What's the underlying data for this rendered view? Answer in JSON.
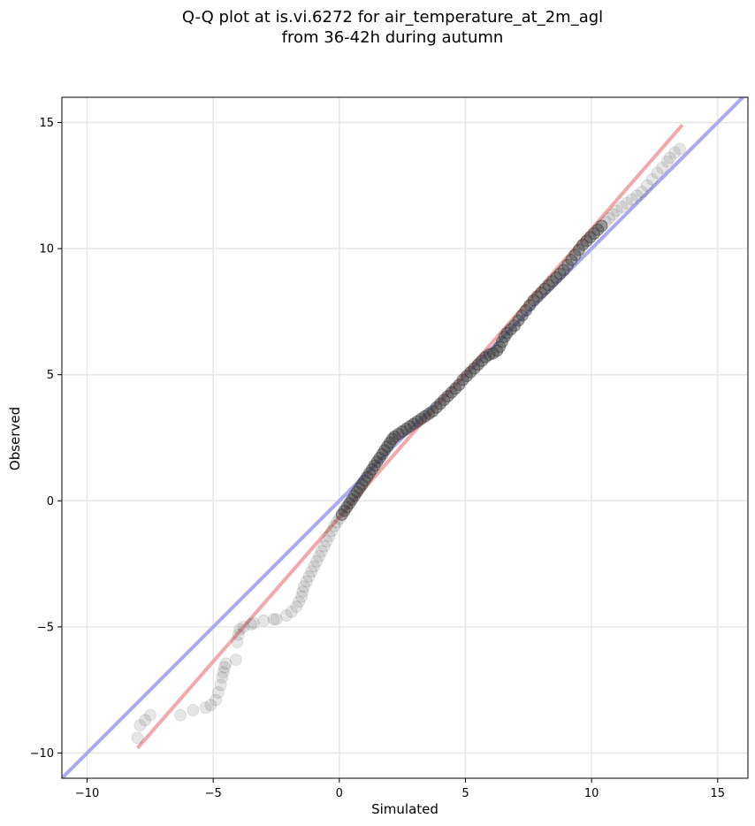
{
  "chart_data": {
    "type": "scatter",
    "title": "Q-Q plot at is.vi.6272 for air_temperature_at_2m_agl",
    "subtitle": "from 36-42h during autumn",
    "xlabel": "Simulated",
    "ylabel": "Observed",
    "xlim": [
      -11,
      16.2
    ],
    "ylim": [
      -11,
      16
    ],
    "xticks": [
      -10,
      -5,
      0,
      5,
      10,
      15
    ],
    "xtick_labels": [
      "−10",
      "−5",
      "0",
      "5",
      "10",
      "15"
    ],
    "yticks": [
      -10,
      -5,
      0,
      5,
      10,
      15
    ],
    "ytick_labels": [
      "−10",
      "−5",
      "0",
      "5",
      "10",
      "15"
    ],
    "grid": true,
    "reference_lines": [
      {
        "name": "",
        "color": "#aaaaee",
        "x": [
          -11,
          16.2
        ],
        "y": [
          -11,
          16.2
        ]
      },
      {
        "name": "",
        "color": "#f4a8a8",
        "x": [
          -8.0,
          13.6
        ],
        "y": [
          -9.8,
          14.9
        ]
      }
    ],
    "points": [
      [
        -8.0,
        -9.4
      ],
      [
        -7.9,
        -8.9
      ],
      [
        -7.7,
        -8.7
      ],
      [
        -7.5,
        -8.5
      ],
      [
        -6.3,
        -8.5
      ],
      [
        -5.8,
        -8.3
      ],
      [
        -5.3,
        -8.2
      ],
      [
        -5.1,
        -8.1
      ],
      [
        -4.9,
        -7.9
      ],
      [
        -4.8,
        -7.6
      ],
      [
        -4.7,
        -7.3
      ],
      [
        -4.65,
        -7.0
      ],
      [
        -4.6,
        -6.8
      ],
      [
        -4.55,
        -6.6
      ],
      [
        -4.5,
        -6.45
      ],
      [
        -4.1,
        -6.3
      ],
      [
        -4.05,
        -5.6
      ],
      [
        -4.0,
        -5.3
      ],
      [
        -3.95,
        -5.1
      ],
      [
        -3.8,
        -5.0
      ],
      [
        -3.5,
        -4.9
      ],
      [
        -3.4,
        -4.85
      ],
      [
        -3.0,
        -4.75
      ],
      [
        -2.6,
        -4.7
      ],
      [
        -2.5,
        -4.7
      ],
      [
        -2.1,
        -4.55
      ],
      [
        -1.9,
        -4.4
      ],
      [
        -1.7,
        -4.2
      ],
      [
        -1.6,
        -4.0
      ],
      [
        -1.5,
        -3.8
      ],
      [
        -1.45,
        -3.6
      ],
      [
        -1.4,
        -3.4
      ],
      [
        -1.3,
        -3.2
      ],
      [
        -1.2,
        -3.0
      ],
      [
        -1.1,
        -2.8
      ],
      [
        -1.0,
        -2.6
      ],
      [
        -0.9,
        -2.4
      ],
      [
        -0.8,
        -2.2
      ],
      [
        -0.7,
        -2.0
      ],
      [
        -0.6,
        -1.8
      ],
      [
        -0.5,
        -1.6
      ],
      [
        -0.4,
        -1.4
      ],
      [
        -0.3,
        -1.2
      ],
      [
        -0.2,
        -1.0
      ],
      [
        -0.1,
        -0.85
      ],
      [
        0.0,
        -0.7
      ],
      [
        0.1,
        -0.55
      ],
      [
        0.2,
        -0.4
      ],
      [
        0.3,
        -0.25
      ],
      [
        0.4,
        -0.1
      ],
      [
        0.5,
        0.05
      ],
      [
        0.6,
        0.2
      ],
      [
        0.7,
        0.35
      ],
      [
        0.8,
        0.5
      ],
      [
        0.9,
        0.65
      ],
      [
        1.0,
        0.8
      ],
      [
        1.1,
        0.95
      ],
      [
        1.2,
        1.1
      ],
      [
        1.3,
        1.25
      ],
      [
        1.4,
        1.4
      ],
      [
        1.5,
        1.55
      ],
      [
        1.6,
        1.7
      ],
      [
        1.7,
        1.85
      ],
      [
        1.8,
        2.0
      ],
      [
        1.9,
        2.15
      ],
      [
        2.0,
        2.3
      ],
      [
        2.1,
        2.45
      ],
      [
        2.2,
        2.55
      ],
      [
        2.35,
        2.65
      ],
      [
        2.5,
        2.75
      ],
      [
        2.65,
        2.85
      ],
      [
        2.8,
        2.95
      ],
      [
        2.95,
        3.05
      ],
      [
        3.1,
        3.15
      ],
      [
        3.25,
        3.25
      ],
      [
        3.4,
        3.35
      ],
      [
        3.55,
        3.45
      ],
      [
        3.7,
        3.55
      ],
      [
        3.85,
        3.7
      ],
      [
        4.0,
        3.85
      ],
      [
        4.15,
        4.0
      ],
      [
        4.3,
        4.15
      ],
      [
        4.45,
        4.3
      ],
      [
        4.6,
        4.45
      ],
      [
        4.75,
        4.6
      ],
      [
        4.9,
        4.8
      ],
      [
        5.05,
        4.95
      ],
      [
        5.2,
        5.1
      ],
      [
        5.35,
        5.25
      ],
      [
        5.5,
        5.4
      ],
      [
        5.65,
        5.55
      ],
      [
        5.8,
        5.7
      ],
      [
        5.95,
        5.8
      ],
      [
        6.1,
        5.85
      ],
      [
        6.25,
        5.95
      ],
      [
        6.35,
        6.1
      ],
      [
        6.45,
        6.3
      ],
      [
        6.55,
        6.5
      ],
      [
        6.65,
        6.65
      ],
      [
        6.8,
        6.8
      ],
      [
        6.95,
        6.95
      ],
      [
        7.1,
        7.15
      ],
      [
        7.25,
        7.35
      ],
      [
        7.4,
        7.55
      ],
      [
        7.55,
        7.75
      ],
      [
        7.7,
        7.95
      ],
      [
        7.85,
        8.1
      ],
      [
        8.0,
        8.25
      ],
      [
        8.15,
        8.4
      ],
      [
        8.3,
        8.55
      ],
      [
        8.45,
        8.7
      ],
      [
        8.6,
        8.85
      ],
      [
        8.75,
        9.0
      ],
      [
        8.9,
        9.15
      ],
      [
        9.05,
        9.35
      ],
      [
        9.2,
        9.55
      ],
      [
        9.35,
        9.75
      ],
      [
        9.5,
        9.95
      ],
      [
        9.65,
        10.15
      ],
      [
        9.8,
        10.3
      ],
      [
        9.95,
        10.45
      ],
      [
        10.1,
        10.6
      ],
      [
        10.25,
        10.75
      ],
      [
        10.4,
        10.9
      ],
      [
        10.55,
        11.05
      ],
      [
        10.7,
        11.2
      ],
      [
        10.85,
        11.35
      ],
      [
        11.0,
        11.5
      ],
      [
        11.2,
        11.65
      ],
      [
        11.4,
        11.8
      ],
      [
        11.6,
        11.95
      ],
      [
        11.8,
        12.1
      ],
      [
        12.0,
        12.25
      ],
      [
        12.2,
        12.5
      ],
      [
        12.4,
        12.75
      ],
      [
        12.6,
        13.0
      ],
      [
        12.8,
        13.2
      ],
      [
        13.0,
        13.45
      ],
      [
        13.1,
        13.6
      ],
      [
        13.3,
        13.8
      ],
      [
        13.5,
        13.95
      ]
    ]
  }
}
